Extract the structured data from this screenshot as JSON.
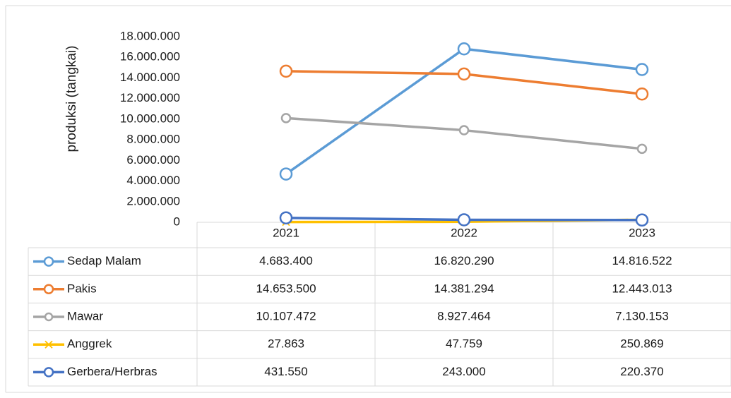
{
  "chart_data": {
    "type": "line",
    "y_axis_label": "produksi (tangkai)",
    "categories": [
      "2021",
      "2022",
      "2023"
    ],
    "ylim": [
      0,
      18000000
    ],
    "yticks": [
      0,
      {
        "value": 2000000,
        "label": "2.000.000"
      },
      {
        "value": 4000000,
        "label": "4.000.000"
      },
      {
        "value": 6000000,
        "label": "6.000.000"
      },
      {
        "value": 8000000,
        "label": "8.000.000"
      },
      {
        "value": 10000000,
        "label": "10.000.000"
      },
      {
        "value": 12000000,
        "label": "12.000.000"
      },
      {
        "value": 14000000,
        "label": "14.000.000"
      },
      {
        "value": 16000000,
        "label": "16.000.000"
      },
      {
        "value": 18000000,
        "label": "18.000.000"
      }
    ],
    "grid": false,
    "legend": "table",
    "series": [
      {
        "name": "Sedap Malam",
        "color": "#5b9bd5",
        "marker": "circle",
        "values": [
          4683400,
          16820290,
          14816522
        ],
        "value_labels": [
          "4.683.400",
          "16.820.290",
          "14.816.522"
        ]
      },
      {
        "name": "Pakis",
        "color": "#ed7d31",
        "marker": "circle",
        "values": [
          14653500,
          14381294,
          12443013
        ],
        "value_labels": [
          "14.653.500",
          "14.381.294",
          "12.443.013"
        ]
      },
      {
        "name": "Mawar",
        "color": "#a5a5a5",
        "marker": "circle",
        "values": [
          10107472,
          8927464,
          7130153
        ],
        "value_labels": [
          "10.107.472",
          "8.927.464",
          "7.130.153"
        ]
      },
      {
        "name": "Anggrek",
        "color": "#ffc000",
        "marker": "x",
        "values": [
          27863,
          47759,
          250869
        ],
        "value_labels": [
          "27.863",
          "47.759",
          "250.869"
        ]
      },
      {
        "name": "Gerbera/Herbras",
        "color": "#4472c4",
        "marker": "circle",
        "values": [
          431550,
          243000,
          220370
        ],
        "value_labels": [
          "431.550",
          "243.000",
          "220.370"
        ]
      }
    ]
  }
}
